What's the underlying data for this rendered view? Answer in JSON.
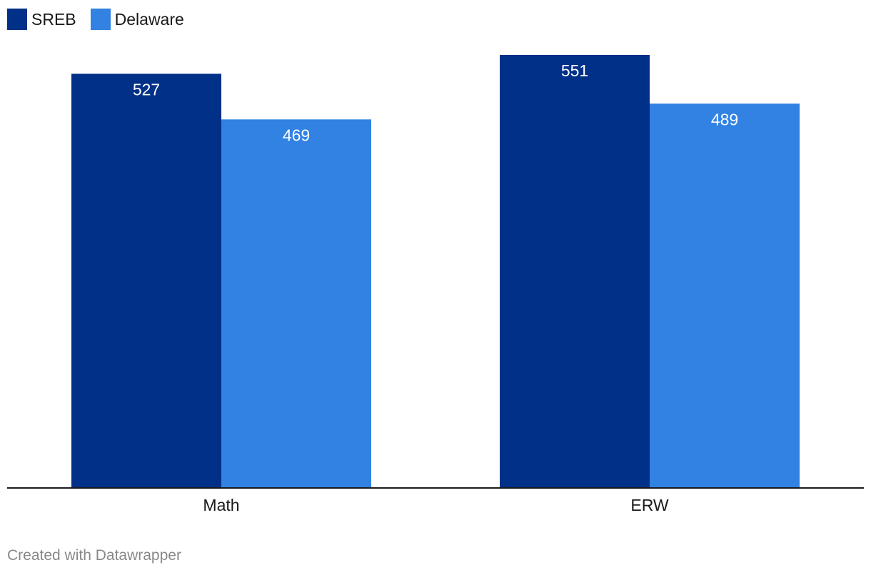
{
  "chart_data": {
    "type": "bar",
    "categories": [
      "Math",
      "ERW"
    ],
    "series": [
      {
        "name": "SREB",
        "values": [
          527,
          551
        ],
        "color": "#003087"
      },
      {
        "name": "Delaware",
        "values": [
          469,
          489
        ],
        "color": "#3182e3"
      }
    ],
    "ylim": [
      0,
      610
    ],
    "grid": false,
    "legend_position": "top-left",
    "data_labels": true
  },
  "footer": {
    "credit": "Created with Datawrapper"
  }
}
